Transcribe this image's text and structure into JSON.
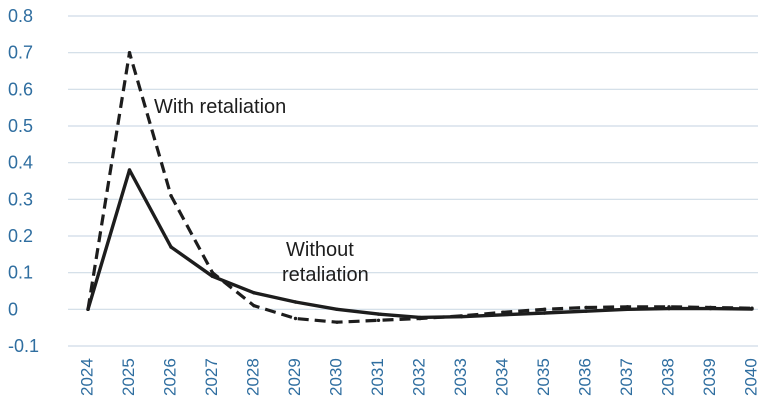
{
  "chart_data": {
    "type": "line",
    "title": "",
    "xlabel": "",
    "ylabel": "",
    "x": [
      "2024",
      "2025",
      "2026",
      "2027",
      "2028",
      "2029",
      "2030",
      "2031",
      "2032",
      "2033",
      "2034",
      "2035",
      "2036",
      "2037",
      "2038",
      "2039",
      "2040"
    ],
    "ylim": [
      -0.1,
      0.8
    ],
    "yticks": [
      "0.8",
      "0.7",
      "0.6",
      "0.5",
      "0.4",
      "0.3",
      "0.2",
      "0.1",
      "0",
      "-0.1"
    ],
    "grid": true,
    "legend": "none",
    "series": [
      {
        "key": "with",
        "style": "dashed",
        "color": "#1d1d1d",
        "values": [
          0.0,
          0.7,
          0.31,
          0.1,
          0.01,
          -0.025,
          -0.035,
          -0.03,
          -0.025,
          -0.018,
          -0.008,
          0.0,
          0.005,
          0.007,
          0.007,
          0.005,
          0.003
        ]
      },
      {
        "key": "without",
        "style": "solid",
        "color": "#1d1d1d",
        "values": [
          0.0,
          0.38,
          0.17,
          0.09,
          0.045,
          0.02,
          0.0,
          -0.013,
          -0.022,
          -0.02,
          -0.015,
          -0.01,
          -0.005,
          0.0,
          0.002,
          0.002,
          0.001
        ]
      }
    ],
    "annotations": [
      {
        "key": "with",
        "lines": [
          "With retaliation"
        ]
      },
      {
        "key": "without",
        "lines": [
          "Without",
          "retaliation"
        ]
      }
    ]
  },
  "colors": {
    "axis_text": "#2f6ea0",
    "grid": "#cfdbe6",
    "lines": "#1d1d1d"
  }
}
